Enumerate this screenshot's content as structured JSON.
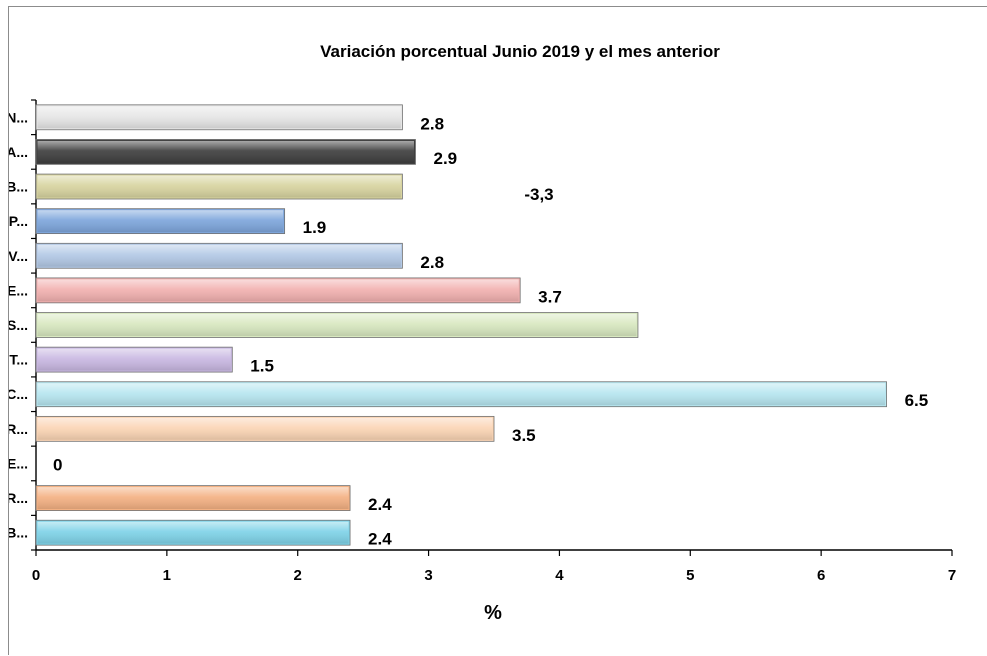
{
  "chart_data": {
    "type": "bar",
    "orientation": "horizontal",
    "title": "Variación porcentual  Junio 2019 y el mes anterior",
    "xlabel": "%",
    "ylabel": "",
    "xlim": [
      0,
      7
    ],
    "x_ticks": [
      "0",
      "1",
      "2",
      "3",
      "4",
      "5",
      "6",
      "7"
    ],
    "grid": false,
    "legend": "none",
    "categories": [
      "B...",
      "R...",
      "E...",
      "R...",
      "C...",
      "T...",
      "S...",
      "E...",
      "V...",
      "P...",
      "B...",
      "A...",
      "N..."
    ],
    "values": [
      2.4,
      2.4,
      0,
      3.5,
      6.5,
      1.5,
      4.6,
      3.7,
      2.8,
      1.9,
      2.8,
      2.9,
      2.8
    ],
    "data_labels": [
      "2.4",
      "2.4",
      "0",
      "3.5",
      "6.5",
      "1.5",
      "",
      "3.7",
      "2.8",
      "1.9",
      "",
      "2.9",
      "2.8"
    ],
    "colors": [
      "#7fd3e8",
      "#f4b183",
      "#ffffff",
      "#fbd5b5",
      "#b7e6f0",
      "#c9b8e2",
      "#d8e8c0",
      "#f2b1b0",
      "#b3c9e6",
      "#7ea6dc",
      "#d8d4a0",
      "#3f3f3f",
      "#e6e6e6"
    ],
    "annotation": "-3,3"
  }
}
